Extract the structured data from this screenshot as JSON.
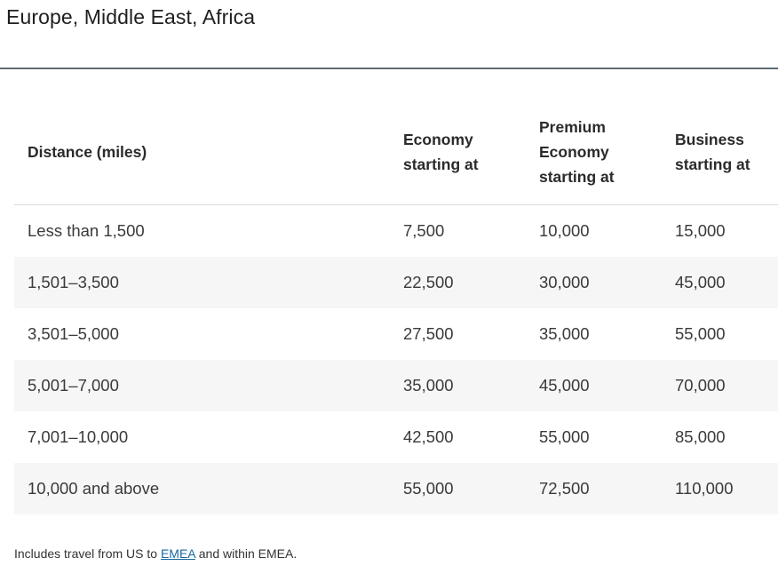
{
  "page": {
    "title": "Europe, Middle East, Africa"
  },
  "table": {
    "headers": [
      "Distance (miles)",
      "Economy starting at",
      "Premium Economy starting at",
      "Business starting at"
    ],
    "rows": [
      [
        "Less than 1,500",
        "7,500",
        "10,000",
        "15,000"
      ],
      [
        "1,501–3,500",
        "22,500",
        "30,000",
        "45,000"
      ],
      [
        "3,501–5,000",
        "27,500",
        "35,000",
        "55,000"
      ],
      [
        "5,001–7,000",
        "35,000",
        "45,000",
        "70,000"
      ],
      [
        "7,001–10,000",
        "42,500",
        "55,000",
        "85,000"
      ],
      [
        "10,000 and above",
        "55,000",
        "72,500",
        "110,000"
      ]
    ]
  },
  "footnote": {
    "before": "Includes travel from US to ",
    "link_label": "EMEA",
    "after": " and within EMEA."
  }
}
